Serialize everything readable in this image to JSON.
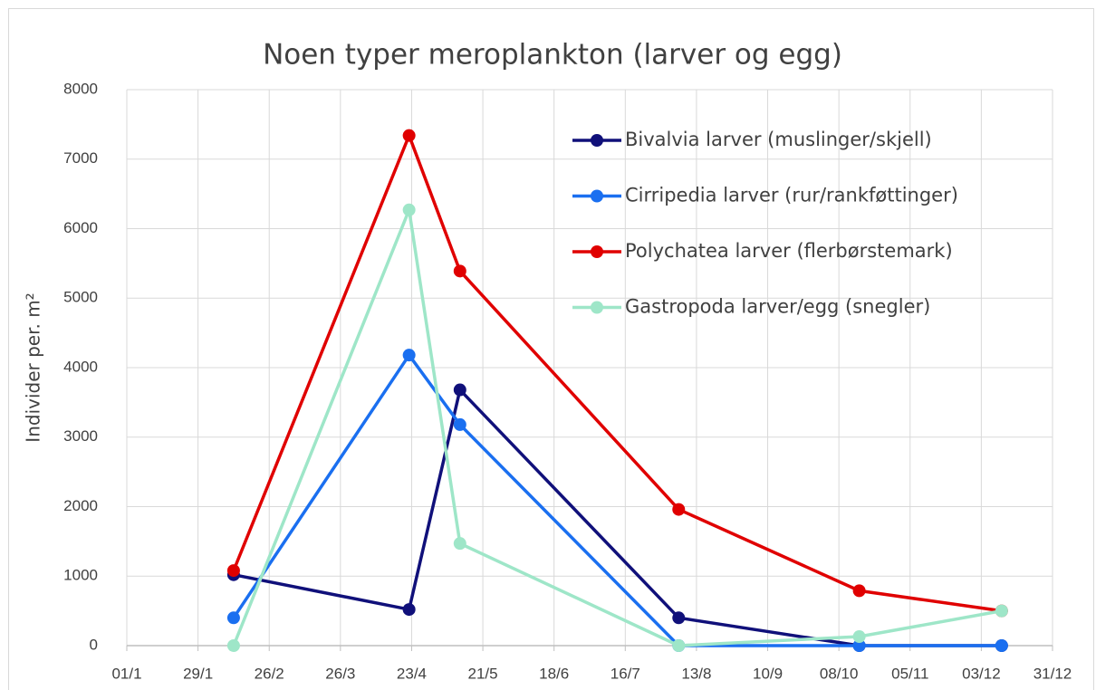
{
  "chart_data": {
    "type": "line",
    "title": "Noen typer meroplankton (larver og egg)",
    "ylabel": "Individer per. m²",
    "x": [
      42,
      111,
      131,
      217,
      288,
      344
    ],
    "xlim": [
      0,
      364
    ],
    "xticks": [
      {
        "value": 0,
        "label": "01/1"
      },
      {
        "value": 28,
        "label": "29/1"
      },
      {
        "value": 56,
        "label": "26/2"
      },
      {
        "value": 84,
        "label": "26/3"
      },
      {
        "value": 112,
        "label": "23/4"
      },
      {
        "value": 140,
        "label": "21/5"
      },
      {
        "value": 168,
        "label": "18/6"
      },
      {
        "value": 196,
        "label": "16/7"
      },
      {
        "value": 224,
        "label": "13/8"
      },
      {
        "value": 252,
        "label": "10/9"
      },
      {
        "value": 280,
        "label": "08/10"
      },
      {
        "value": 308,
        "label": "05/11"
      },
      {
        "value": 336,
        "label": "03/12"
      },
      {
        "value": 364,
        "label": "31/12"
      }
    ],
    "ylim": [
      0,
      8000
    ],
    "yticks": [
      0,
      1000,
      2000,
      3000,
      4000,
      5000,
      6000,
      7000,
      8000
    ],
    "grid": true,
    "legend": "upper right",
    "series": [
      {
        "name": "Bivalvia larver (muslinger/skjell)",
        "color": "#10107a",
        "values": [
          1020,
          520,
          3680,
          400,
          0,
          0
        ]
      },
      {
        "name": "Cirripedia larver (rur/rankføttinger)",
        "color": "#1a6ff0",
        "values": [
          400,
          4180,
          3180,
          0,
          0,
          0
        ]
      },
      {
        "name": "Polychatea larver (flerbørstemark)",
        "color": "#e00000",
        "values": [
          1080,
          7340,
          5390,
          1960,
          790,
          500
        ]
      },
      {
        "name": "Gastropoda larver/egg (snegler)",
        "color": "#9ee6c8",
        "values": [
          0,
          6270,
          1470,
          0,
          130,
          500
        ]
      }
    ]
  }
}
